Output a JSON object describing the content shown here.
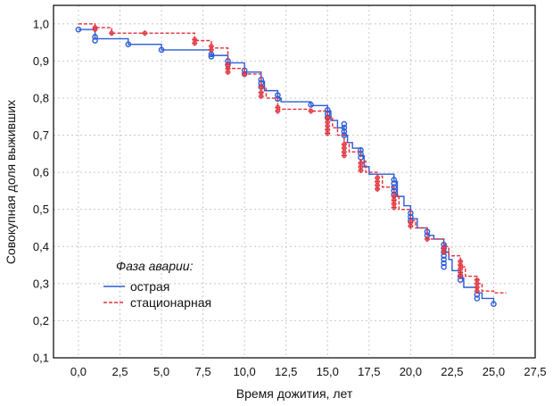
{
  "chart_data": {
    "type": "line",
    "title": "",
    "xlabel": "Время дожития, лет",
    "ylabel": "Совокупная доля выживших",
    "xlim": [
      -1.5,
      27.5
    ],
    "ylim": [
      0.1,
      1.05
    ],
    "x_ticks": [
      0,
      2.5,
      5,
      7.5,
      10,
      12.5,
      15,
      17.5,
      20,
      22.5,
      25,
      27.5
    ],
    "x_tick_labels": [
      "0,0",
      "2,5",
      "5,0",
      "7,5",
      "10,0",
      "12,5",
      "15,0",
      "17,5",
      "20,0",
      "22,5",
      "25,0",
      "27,5"
    ],
    "y_ticks": [
      0.1,
      0.2,
      0.3,
      0.4,
      0.5,
      0.6,
      0.7,
      0.8,
      0.9,
      1.0
    ],
    "y_tick_labels": [
      "0,1",
      "0,2",
      "0,3",
      "0,4",
      "0,5",
      "0,6",
      "0,7",
      "0,8",
      "0,9",
      "1,0"
    ],
    "grid": true,
    "legend_position": "bottom-left",
    "legend_title": "Фаза аварии:",
    "series": [
      {
        "name": "острая",
        "color": "#2a5bd7",
        "style": "solid",
        "steps": [
          [
            0,
            0.985
          ],
          [
            1,
            0.96
          ],
          [
            3,
            0.945
          ],
          [
            5,
            0.93
          ],
          [
            8,
            0.915
          ],
          [
            9,
            0.895
          ],
          [
            10,
            0.87
          ],
          [
            11,
            0.845
          ],
          [
            11.2,
            0.82
          ],
          [
            12,
            0.8
          ],
          [
            12.2,
            0.79
          ],
          [
            14,
            0.78
          ],
          [
            15,
            0.765
          ],
          [
            15.2,
            0.74
          ],
          [
            15.6,
            0.72
          ],
          [
            16,
            0.7
          ],
          [
            16.2,
            0.68
          ],
          [
            16.5,
            0.665
          ],
          [
            17,
            0.645
          ],
          [
            17.2,
            0.615
          ],
          [
            17.5,
            0.595
          ],
          [
            19,
            0.575
          ],
          [
            19.2,
            0.535
          ],
          [
            19.6,
            0.51
          ],
          [
            20,
            0.475
          ],
          [
            20.4,
            0.45
          ],
          [
            21,
            0.43
          ],
          [
            21.4,
            0.42
          ],
          [
            22,
            0.405
          ],
          [
            22.1,
            0.385
          ],
          [
            22.3,
            0.365
          ],
          [
            22.5,
            0.335
          ],
          [
            23,
            0.315
          ],
          [
            23.2,
            0.29
          ],
          [
            24,
            0.275
          ],
          [
            24.3,
            0.26
          ],
          [
            25,
            0.245
          ]
        ],
        "censored": [
          [
            0,
            0.985
          ],
          [
            1,
            0.965
          ],
          [
            1,
            0.955
          ],
          [
            3,
            0.945
          ],
          [
            5,
            0.93
          ],
          [
            8,
            0.918
          ],
          [
            8,
            0.912
          ],
          [
            9,
            0.9
          ],
          [
            9,
            0.89
          ],
          [
            10,
            0.875
          ],
          [
            10,
            0.865
          ],
          [
            11,
            0.85
          ],
          [
            11,
            0.84
          ],
          [
            11,
            0.83
          ],
          [
            12,
            0.808
          ],
          [
            12,
            0.798
          ],
          [
            14,
            0.782
          ],
          [
            15,
            0.768
          ],
          [
            15,
            0.758
          ],
          [
            15,
            0.748
          ],
          [
            16,
            0.73
          ],
          [
            16,
            0.72
          ],
          [
            16,
            0.71
          ],
          [
            16,
            0.7
          ],
          [
            17,
            0.66
          ],
          [
            17,
            0.65
          ],
          [
            17,
            0.64
          ],
          [
            19,
            0.58
          ],
          [
            19,
            0.57
          ],
          [
            19,
            0.56
          ],
          [
            19,
            0.55
          ],
          [
            19,
            0.54
          ],
          [
            20,
            0.49
          ],
          [
            20,
            0.48
          ],
          [
            20,
            0.47
          ],
          [
            21,
            0.44
          ],
          [
            21,
            0.43
          ],
          [
            22,
            0.405
          ],
          [
            22,
            0.395
          ],
          [
            22,
            0.385
          ],
          [
            22,
            0.375
          ],
          [
            22,
            0.365
          ],
          [
            22,
            0.355
          ],
          [
            22,
            0.345
          ],
          [
            23,
            0.32
          ],
          [
            23,
            0.31
          ],
          [
            24,
            0.27
          ],
          [
            24,
            0.26
          ],
          [
            25,
            0.245
          ]
        ]
      },
      {
        "name": "стационарная",
        "color": "#e0303a",
        "style": "dashed",
        "steps": [
          [
            0,
            1.0
          ],
          [
            1,
            0.99
          ],
          [
            2,
            0.975
          ],
          [
            7,
            0.955
          ],
          [
            8,
            0.935
          ],
          [
            9,
            0.88
          ],
          [
            10,
            0.865
          ],
          [
            11,
            0.83
          ],
          [
            11.3,
            0.8
          ],
          [
            12,
            0.77
          ],
          [
            14,
            0.765
          ],
          [
            15,
            0.75
          ],
          [
            15.3,
            0.72
          ],
          [
            15.6,
            0.7
          ],
          [
            16,
            0.68
          ],
          [
            16.3,
            0.655
          ],
          [
            17,
            0.63
          ],
          [
            17.3,
            0.6
          ],
          [
            18,
            0.59
          ],
          [
            18.3,
            0.56
          ],
          [
            19,
            0.54
          ],
          [
            19.3,
            0.5
          ],
          [
            20,
            0.47
          ],
          [
            20.3,
            0.45
          ],
          [
            21,
            0.42
          ],
          [
            22,
            0.4
          ],
          [
            22.3,
            0.375
          ],
          [
            23,
            0.345
          ],
          [
            23.3,
            0.32
          ],
          [
            24,
            0.3
          ],
          [
            24.3,
            0.28
          ],
          [
            25,
            0.275
          ]
        ],
        "censored": [
          [
            1,
            0.99
          ],
          [
            1,
            0.985
          ],
          [
            2,
            0.975
          ],
          [
            4,
            0.975
          ],
          [
            7,
            0.958
          ],
          [
            7,
            0.948
          ],
          [
            8,
            0.94
          ],
          [
            8,
            0.93
          ],
          [
            9,
            0.89
          ],
          [
            9,
            0.88
          ],
          [
            9,
            0.87
          ],
          [
            10,
            0.865
          ],
          [
            11,
            0.83
          ],
          [
            11,
            0.815
          ],
          [
            11,
            0.805
          ],
          [
            12,
            0.775
          ],
          [
            12,
            0.765
          ],
          [
            14,
            0.765
          ],
          [
            15,
            0.745
          ],
          [
            15,
            0.735
          ],
          [
            15,
            0.725
          ],
          [
            15,
            0.715
          ],
          [
            15,
            0.705
          ],
          [
            16,
            0.675
          ],
          [
            16,
            0.665
          ],
          [
            16,
            0.655
          ],
          [
            16,
            0.645
          ],
          [
            17,
            0.625
          ],
          [
            17,
            0.615
          ],
          [
            17,
            0.605
          ],
          [
            18,
            0.585
          ],
          [
            18,
            0.575
          ],
          [
            18,
            0.565
          ],
          [
            18,
            0.555
          ],
          [
            19,
            0.535
          ],
          [
            19,
            0.525
          ],
          [
            19,
            0.515
          ],
          [
            19,
            0.505
          ],
          [
            20,
            0.465
          ],
          [
            20,
            0.455
          ],
          [
            21,
            0.42
          ],
          [
            22,
            0.395
          ],
          [
            22,
            0.385
          ],
          [
            23,
            0.36
          ],
          [
            23,
            0.35
          ],
          [
            23,
            0.34
          ],
          [
            23,
            0.33
          ],
          [
            23,
            0.32
          ],
          [
            24,
            0.31
          ],
          [
            24,
            0.3
          ],
          [
            24,
            0.29
          ],
          [
            24,
            0.28
          ]
        ]
      }
    ]
  }
}
